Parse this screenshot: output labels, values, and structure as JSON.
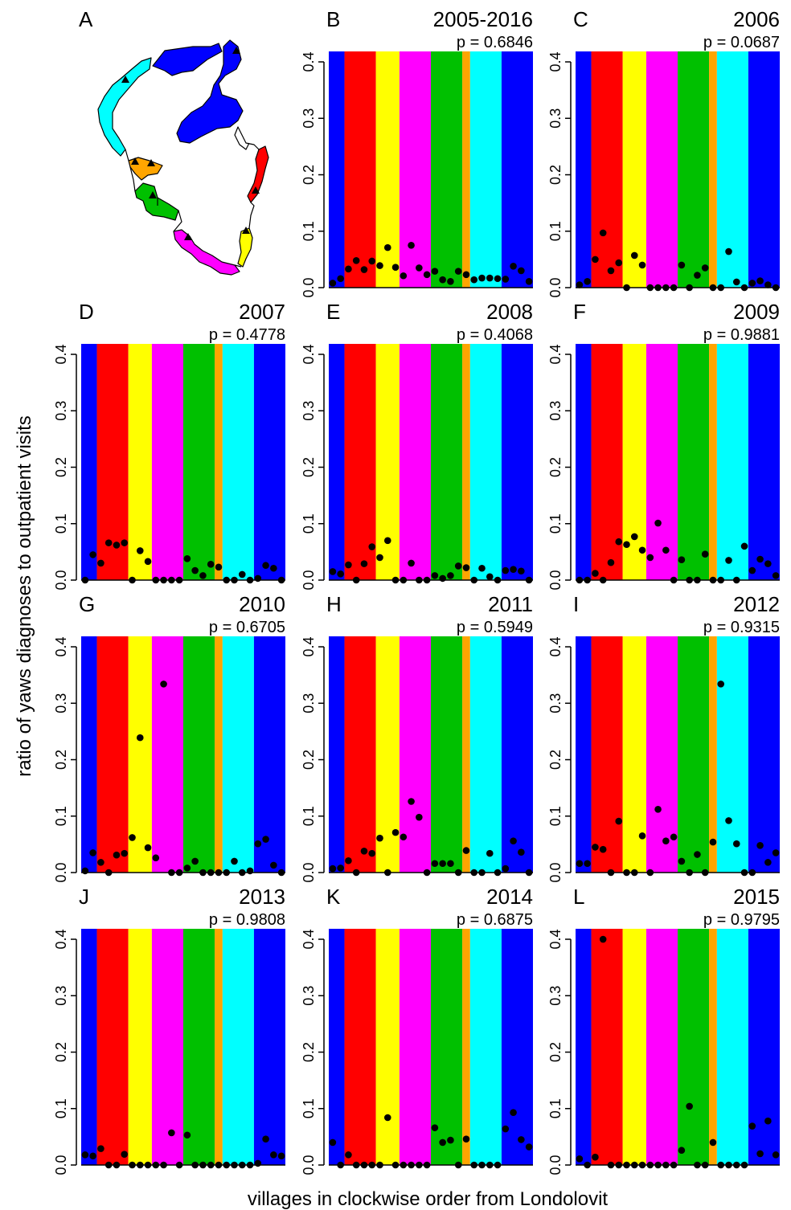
{
  "figure": {
    "ylabel": "ratio of yaws diagnoses to outpatient visits",
    "xlabel": "villages in clockwise order from Londolovit",
    "map_panel_letter": "A",
    "region_colors": [
      "#0000ff",
      "#ff0000",
      "#ffff00",
      "#ff00ff",
      "#00c000",
      "#ffa500",
      "#00ffff",
      "#0000ff"
    ],
    "region_bounds": [
      0,
      2,
      6,
      9,
      13,
      17,
      18,
      22,
      26
    ]
  },
  "chart_data": [
    {
      "type": "scatter",
      "panel": "B",
      "title": "2005-2016",
      "p_label": "p = 0.6846",
      "ylim": [
        0,
        0.41
      ],
      "yticks": [
        "0.0",
        "0.1",
        "0.2",
        "0.3",
        "0.4"
      ],
      "values": [
        0.008,
        0.016,
        0.033,
        0.048,
        0.032,
        0.047,
        0.039,
        0.071,
        0.036,
        0.021,
        0.075,
        0.035,
        0.023,
        0.029,
        0.014,
        0.011,
        0.029,
        0.023,
        0.014,
        0.017,
        0.017,
        0.016,
        0.015,
        0.038,
        0.03,
        0.011
      ]
    },
    {
      "type": "scatter",
      "panel": "C",
      "title": "2006",
      "p_label": "p = 0.0687",
      "ylim": [
        0,
        0.41
      ],
      "yticks": [
        "0.0",
        "0.1",
        "0.2",
        "0.3",
        "0.4"
      ],
      "values": [
        0.005,
        0.011,
        0.05,
        0.097,
        0.03,
        0.044,
        0.0,
        0.057,
        0.04,
        0.0,
        0.0,
        0.0,
        0.0,
        0.04,
        0.0,
        0.022,
        0.035,
        0.0,
        0.0,
        0.064,
        0.01,
        0.0,
        0.008,
        0.012,
        0.005,
        0.0
      ]
    },
    {
      "type": "scatter",
      "panel": "D",
      "title": "2007",
      "p_label": "p = 0.4778",
      "ylim": [
        0,
        0.41
      ],
      "yticks": [
        "0.0",
        "0.1",
        "0.2",
        "0.3",
        "0.4"
      ],
      "values": [
        0.0,
        0.045,
        0.03,
        0.066,
        0.062,
        0.066,
        0.0,
        0.052,
        0.033,
        0.0,
        0.0,
        0.0,
        0.0,
        0.038,
        0.017,
        0.008,
        0.028,
        0.023,
        0.0,
        0.0,
        0.01,
        0.0,
        0.003,
        0.026,
        0.021,
        0.0
      ]
    },
    {
      "type": "scatter",
      "panel": "E",
      "title": "2008",
      "p_label": "p = 0.4068",
      "ylim": [
        0,
        0.41
      ],
      "yticks": [
        "0.0",
        "0.1",
        "0.2",
        "0.3",
        "0.4"
      ],
      "values": [
        0.015,
        0.011,
        0.027,
        0.0,
        0.029,
        0.059,
        0.04,
        0.07,
        0.0,
        0.0,
        0.03,
        0.0,
        0.0,
        0.008,
        0.003,
        0.008,
        0.025,
        0.022,
        0.0,
        0.021,
        0.006,
        0.0,
        0.017,
        0.019,
        0.016,
        0.0
      ]
    },
    {
      "type": "scatter",
      "panel": "F",
      "title": "2009",
      "p_label": "p = 0.9881",
      "ylim": [
        0,
        0.41
      ],
      "yticks": [
        "0.0",
        "0.1",
        "0.2",
        "0.3",
        "0.4"
      ],
      "values": [
        0.0,
        0.0,
        0.012,
        0.0,
        0.031,
        0.068,
        0.063,
        0.077,
        0.053,
        0.04,
        0.101,
        0.053,
        0.0,
        0.036,
        0.0,
        0.0,
        0.046,
        0.0,
        0.0,
        0.035,
        0.0,
        0.06,
        0.017,
        0.037,
        0.029,
        0.008
      ]
    },
    {
      "type": "scatter",
      "panel": "G",
      "title": "2010",
      "p_label": "p = 0.6705",
      "ylim": [
        0,
        0.41
      ],
      "yticks": [
        "0.0",
        "0.1",
        "0.2",
        "0.3",
        "0.4"
      ],
      "values": [
        0.003,
        0.035,
        0.018,
        0.0,
        0.031,
        0.034,
        0.062,
        0.239,
        0.044,
        0.026,
        0.334,
        0.0,
        0.0,
        0.008,
        0.02,
        0.0,
        0.0,
        0.0,
        0.0,
        0.02,
        0.0,
        0.003,
        0.051,
        0.059,
        0.013,
        0.0
      ]
    },
    {
      "type": "scatter",
      "panel": "H",
      "title": "2011",
      "p_label": "p = 0.5949",
      "ylim": [
        0,
        0.41
      ],
      "yticks": [
        "0.0",
        "0.1",
        "0.2",
        "0.3",
        "0.4"
      ],
      "values": [
        0.007,
        0.008,
        0.021,
        0.0,
        0.038,
        0.034,
        0.061,
        0.0,
        0.071,
        0.063,
        0.126,
        0.098,
        0.0,
        0.016,
        0.016,
        0.016,
        0.0,
        0.039,
        0.0,
        0.0,
        0.034,
        0.0,
        0.007,
        0.056,
        0.036,
        0.0
      ]
    },
    {
      "type": "scatter",
      "panel": "I",
      "title": "2012",
      "p_label": "p = 0.9315",
      "ylim": [
        0,
        0.41
      ],
      "yticks": [
        "0.0",
        "0.1",
        "0.2",
        "0.3",
        "0.4"
      ],
      "values": [
        0.016,
        0.016,
        0.045,
        0.041,
        0.0,
        0.091,
        0.0,
        0.0,
        0.065,
        0.0,
        0.112,
        0.056,
        0.063,
        0.02,
        0.0,
        0.032,
        0.0,
        0.054,
        0.334,
        0.092,
        0.051,
        0.0,
        0.0,
        0.048,
        0.018,
        0.035
      ]
    },
    {
      "type": "scatter",
      "panel": "J",
      "title": "2013",
      "p_label": "p = 0.9808",
      "ylim": [
        0,
        0.41
      ],
      "yticks": [
        "0.0",
        "0.1",
        "0.2",
        "0.3",
        "0.4"
      ],
      "values": [
        0.018,
        0.016,
        0.029,
        0.0,
        0.0,
        0.019,
        0.0,
        0.0,
        0.0,
        0.0,
        0.0,
        0.057,
        0.0,
        0.053,
        0.0,
        0.0,
        0.0,
        0.0,
        0.0,
        0.0,
        0.0,
        0.0,
        0.003,
        0.046,
        0.018,
        0.016
      ]
    },
    {
      "type": "scatter",
      "panel": "K",
      "title": "2014",
      "p_label": "p = 0.6875",
      "ylim": [
        0,
        0.41
      ],
      "yticks": [
        "0.0",
        "0.1",
        "0.2",
        "0.3",
        "0.4"
      ],
      "values": [
        0.04,
        0.0,
        0.018,
        0.0,
        0.0,
        0.0,
        0.0,
        0.084,
        0.0,
        0.0,
        0.0,
        0.0,
        0.0,
        0.066,
        0.04,
        0.044,
        0.0,
        0.046,
        0.0,
        0.0,
        0.0,
        0.0,
        0.064,
        0.093,
        0.045,
        0.032
      ]
    },
    {
      "type": "scatter",
      "panel": "L",
      "title": "2015",
      "p_label": "p = 0.9795",
      "ylim": [
        0,
        0.41
      ],
      "yticks": [
        "0.0",
        "0.1",
        "0.2",
        "0.3",
        "0.4"
      ],
      "values": [
        0.011,
        0.0,
        0.014,
        0.4,
        0.0,
        0.0,
        0.0,
        0.0,
        0.0,
        0.0,
        0.0,
        0.0,
        0.0,
        0.026,
        0.104,
        0.0,
        0.0,
        0.04,
        0.0,
        0.0,
        0.0,
        0.0,
        0.069,
        0.02,
        0.078,
        0.018
      ]
    }
  ]
}
